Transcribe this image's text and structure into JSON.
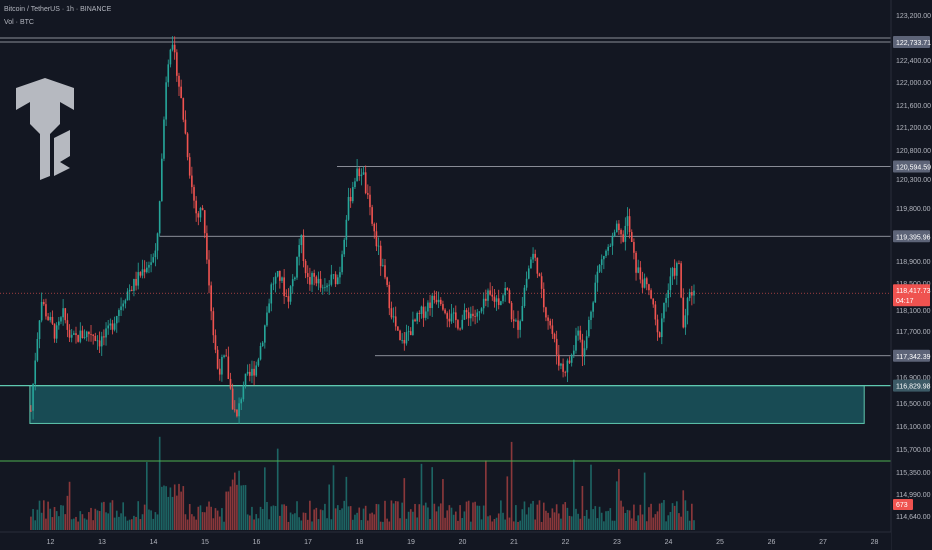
{
  "header": {
    "symbol": "Bitcoin / TetherUS · 1h · BINANCE",
    "volume_label": "Vol · BTC"
  },
  "colors": {
    "background": "#131722",
    "up_candle": "#26a69a",
    "down_candle": "#ef5350",
    "zone_fill": "#1b5e65",
    "zone_border": "#5fc9b0",
    "level_line": "#b2b5be",
    "last_price_line": "#ef5350",
    "volume_line": "#4caf50",
    "axis_text": "#b2b5be"
  },
  "chart_data": {
    "type": "candlestick",
    "symbol": "BTCUSDT",
    "exchange": "BINANCE",
    "timeframe": "1h",
    "price_axis_ticks": [
      "123,200.00",
      "122,400.00",
      "122,000.00",
      "121,600.00",
      "121,200.00",
      "120,800.00",
      "120,300.00",
      "119,800.00",
      "118,900.00",
      "118,500.00",
      "118,100.00",
      "117,700.00",
      "116,900.00",
      "116,500.00",
      "116,100.00",
      "115,700.00",
      "115,350.00",
      "114,990.00",
      "114,640.00"
    ],
    "price_axis_values": [
      123200,
      122400,
      122000,
      121600,
      121200,
      120800,
      120300,
      119800,
      118900,
      118500,
      118100,
      117700,
      116900,
      116500,
      116100,
      115700,
      115350,
      114990,
      114640
    ],
    "x_axis_labels": [
      "12",
      "13",
      "14",
      "15",
      "16",
      "17",
      "18",
      "19",
      "20",
      "21",
      "22",
      "23",
      "24",
      "25",
      "26",
      "27",
      "28"
    ],
    "x_axis_days": [
      12,
      13,
      14,
      15,
      16,
      17,
      18,
      19,
      20,
      21,
      22,
      23,
      24,
      25,
      26,
      27,
      28
    ],
    "horizontal_levels": [
      {
        "value": 122733.71,
        "label": "122,733.71"
      },
      {
        "value": 120594.59,
        "label": "120,594.59"
      },
      {
        "value": 119395.96,
        "label": "119,395.96"
      },
      {
        "value": 117342.39,
        "label": "117,342.39"
      },
      {
        "value": 116829.98,
        "label": "116,829.98"
      }
    ],
    "support_zone": {
      "top": 116829.98,
      "bottom": 116180,
      "from_day": 11.6,
      "to_day": 27.8
    },
    "last_price": {
      "value": 118417.73,
      "label": "118,417.73",
      "countdown": "04:17"
    },
    "volume_last": {
      "label": "673"
    },
    "price_path": [
      [
        11.62,
        116400
      ],
      [
        11.72,
        117500
      ],
      [
        11.82,
        118300
      ],
      [
        11.95,
        118000
      ],
      [
        12.1,
        117700
      ],
      [
        12.25,
        118050
      ],
      [
        12.4,
        117600
      ],
      [
        12.6,
        117700
      ],
      [
        12.8,
        117750
      ],
      [
        12.95,
        117600
      ],
      [
        13.1,
        117700
      ],
      [
        13.25,
        118000
      ],
      [
        13.45,
        118400
      ],
      [
        13.65,
        118600
      ],
      [
        13.85,
        118900
      ],
      [
        14.05,
        119050
      ],
      [
        14.15,
        120500
      ],
      [
        14.25,
        122200
      ],
      [
        14.32,
        122733.71
      ],
      [
        14.45,
        122300
      ],
      [
        14.6,
        121300
      ],
      [
        14.75,
        120200
      ],
      [
        14.85,
        119700
      ],
      [
        14.95,
        119900
      ],
      [
        15.05,
        119000
      ],
      [
        15.15,
        117800
      ],
      [
        15.25,
        117100
      ],
      [
        15.4,
        117300
      ],
      [
        15.55,
        116450
      ],
      [
        15.62,
        116250
      ],
      [
        15.75,
        116900
      ],
      [
        15.85,
        116950
      ],
      [
        16.0,
        117200
      ],
      [
        16.15,
        117800
      ],
      [
        16.3,
        118600
      ],
      [
        16.45,
        118700
      ],
      [
        16.6,
        118300
      ],
      [
        16.75,
        118800
      ],
      [
        16.85,
        119400
      ],
      [
        17.0,
        118600
      ],
      [
        17.15,
        118700
      ],
      [
        17.3,
        118400
      ],
      [
        17.45,
        118650
      ],
      [
        17.6,
        118700
      ],
      [
        17.75,
        119800
      ],
      [
        17.9,
        120400
      ],
      [
        18.05,
        120550
      ],
      [
        18.2,
        119800
      ],
      [
        18.35,
        119200
      ],
      [
        18.5,
        118600
      ],
      [
        18.65,
        118000
      ],
      [
        18.8,
        117500
      ],
      [
        18.95,
        117750
      ],
      [
        19.15,
        118000
      ],
      [
        19.35,
        118250
      ],
      [
        19.55,
        118400
      ],
      [
        19.75,
        118000
      ],
      [
        19.95,
        117900
      ],
      [
        20.1,
        118100
      ],
      [
        20.3,
        118000
      ],
      [
        20.5,
        118350
      ],
      [
        20.7,
        118300
      ],
      [
        20.85,
        118500
      ],
      [
        21.0,
        117850
      ],
      [
        21.1,
        117900
      ],
      [
        21.2,
        118500
      ],
      [
        21.35,
        119100
      ],
      [
        21.45,
        118900
      ],
      [
        21.55,
        118300
      ],
      [
        21.7,
        117900
      ],
      [
        21.85,
        117300
      ],
      [
        21.95,
        117100
      ],
      [
        22.05,
        117200
      ],
      [
        22.15,
        117400
      ],
      [
        22.25,
        117900
      ],
      [
        22.35,
        117300
      ],
      [
        22.5,
        118200
      ],
      [
        22.6,
        118700
      ],
      [
        22.75,
        119100
      ],
      [
        22.85,
        119200
      ],
      [
        23.0,
        119500
      ],
      [
        23.1,
        119300
      ],
      [
        23.2,
        119700
      ],
      [
        23.35,
        118900
      ],
      [
        23.5,
        118600
      ],
      [
        23.65,
        118400
      ],
      [
        23.8,
        117600
      ],
      [
        23.9,
        118200
      ],
      [
        24.0,
        118500
      ],
      [
        24.1,
        118800
      ],
      [
        24.2,
        118900
      ],
      [
        24.3,
        117700
      ],
      [
        24.4,
        118500
      ],
      [
        24.5,
        118417.73
      ]
    ]
  }
}
